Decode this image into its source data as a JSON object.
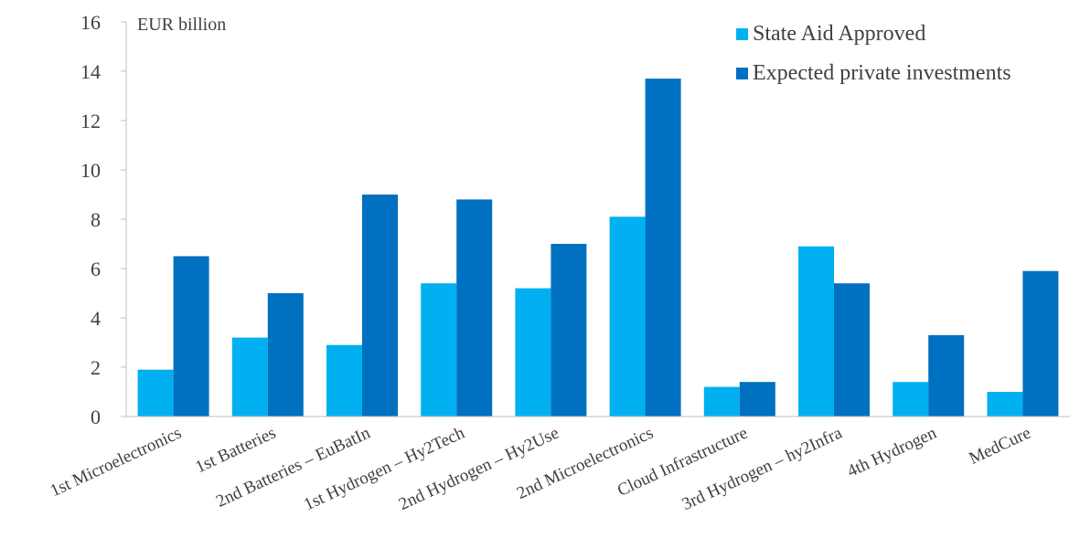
{
  "chart_data": {
    "type": "bar",
    "unit_label": "EUR billion",
    "categories": [
      "1st Microelectronics",
      "1st Batteries",
      "2nd Batteries – EuBatIn",
      "1st Hydrogen – Hy2Tech",
      "2nd Hydrogen  – Hy2Use",
      "2nd Microelectronics",
      "Cloud Infrastructure",
      "3rd Hydrogen  – hy2Infra",
      "4th Hydrogen",
      "MedCure"
    ],
    "series": [
      {
        "name": "State Aid Approved",
        "color": "#00b0f0",
        "values": [
          1.9,
          3.2,
          2.9,
          5.4,
          5.2,
          8.1,
          1.2,
          6.9,
          1.4,
          1.0
        ]
      },
      {
        "name": "Expected private investments",
        "color": "#0070c0",
        "values": [
          6.5,
          5.0,
          9.0,
          8.8,
          7.0,
          13.7,
          1.4,
          5.4,
          3.3,
          5.9
        ]
      }
    ],
    "ylim": [
      0,
      16
    ],
    "yticks": [
      0,
      2,
      4,
      6,
      8,
      10,
      12,
      14,
      16
    ],
    "grid": false,
    "legend_position": "top-right"
  }
}
